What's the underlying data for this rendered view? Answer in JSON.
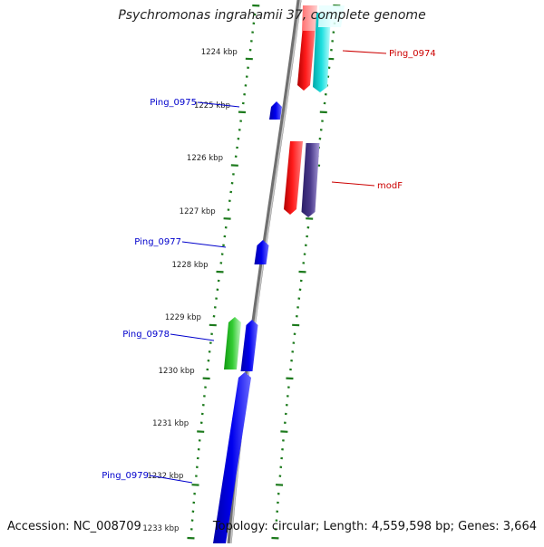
{
  "title": "Psychromonas ingrahamii 37, complete genome",
  "accession": "Accession: NC_008709",
  "summary": "Topology: circular; Length: 4,559,598 bp; Genes: 3,664",
  "colors": {
    "backbone": "#8a8a8a",
    "ruler_tick": "#1c7a1c",
    "label_forward": "#0000cc",
    "label_reverse": "#cc0000",
    "scale_text": "#222222"
  },
  "scale_labels": [
    "1224 kbp",
    "1225 kbp",
    "1226 kbp",
    "1227 kbp",
    "1228 kbp",
    "1229 kbp",
    "1230 kbp",
    "1231 kbp",
    "1232 kbp",
    "1233 kbp"
  ],
  "genes": [
    {
      "label": "Ping_0974",
      "strand": "reverse",
      "color": "#ff0000",
      "paired_color": "#00d8d8"
    },
    {
      "label": "modF",
      "strand": "reverse",
      "color": "#ff0000",
      "paired_color": "#4a3a8c"
    },
    {
      "label": "Ping_0975",
      "strand": "forward",
      "color": "#0000ee"
    },
    {
      "label": "Ping_0977",
      "strand": "forward",
      "color": "#0000ee"
    },
    {
      "label": "Ping_0978",
      "strand": "forward",
      "color": "#0000ee",
      "paired_color": "#22bb22"
    },
    {
      "label": "Ping_0979",
      "strand": "forward",
      "color": "#0000ee"
    }
  ]
}
